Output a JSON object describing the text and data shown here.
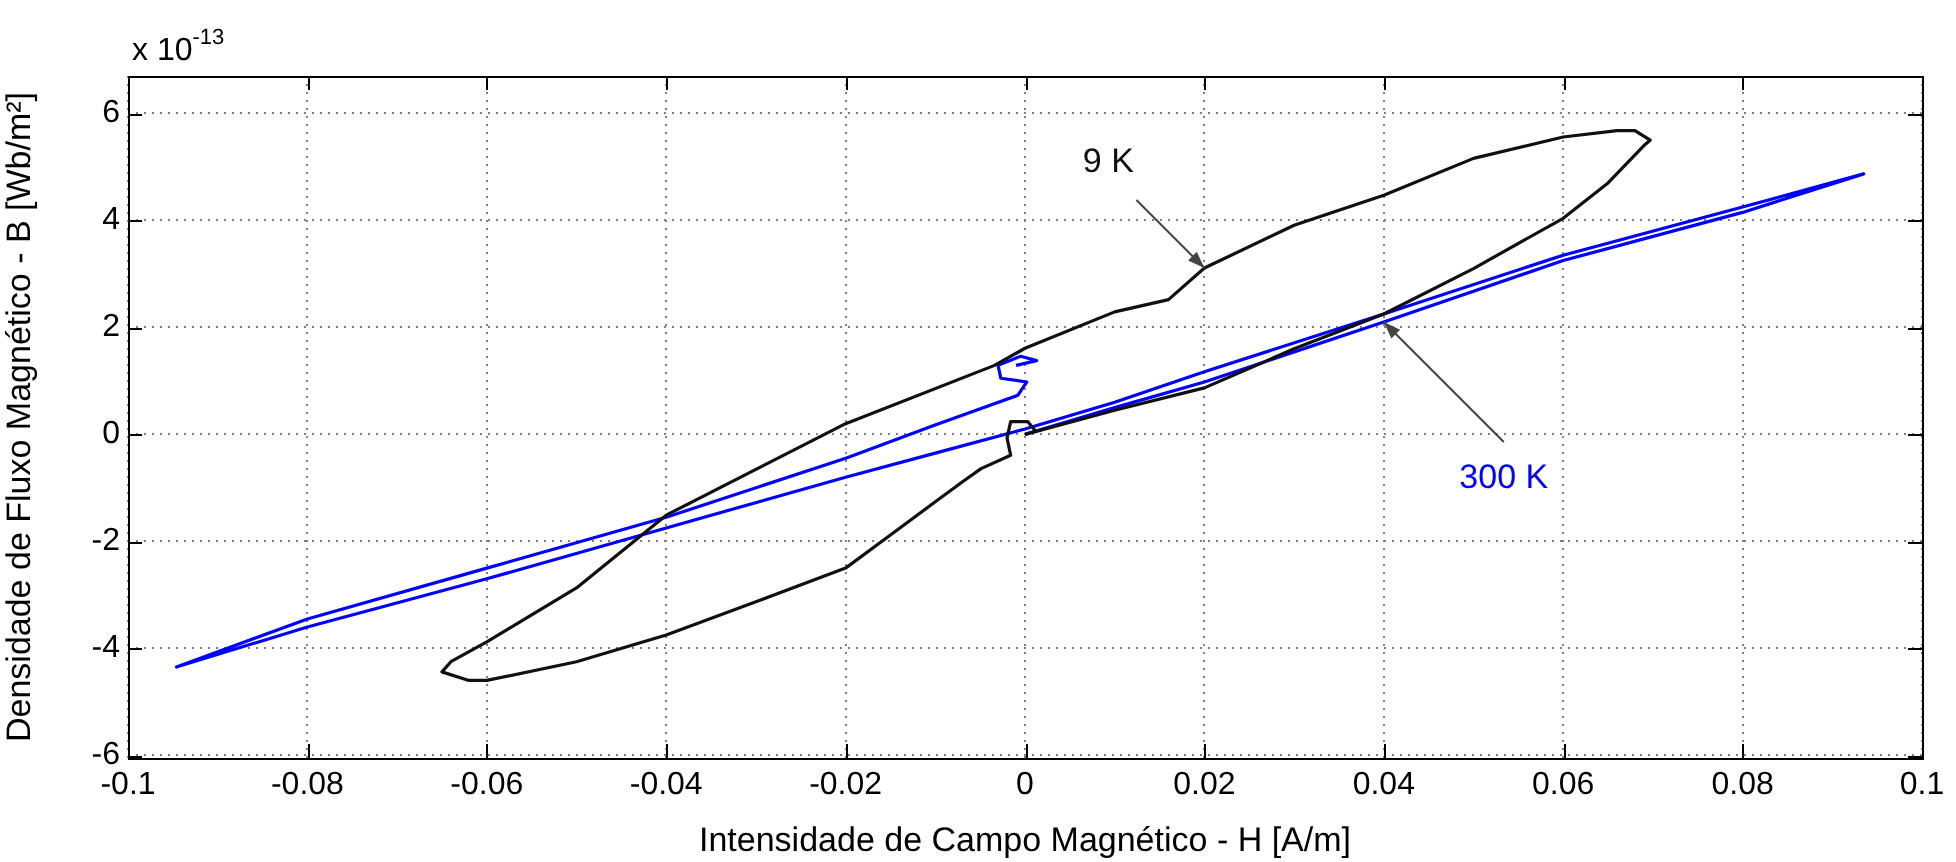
{
  "chart_data": {
    "type": "line",
    "xlabel": "Intensidade de Campo Magnético - H [A/m]",
    "ylabel": "Densidade de Fluxo Magnético - B [Wb/m²]",
    "xlim": [
      -0.1,
      0.1
    ],
    "xticks": [
      -0.1,
      -0.08,
      -0.06,
      -0.04,
      -0.02,
      0,
      0.02,
      0.04,
      0.06,
      0.08,
      0.1
    ],
    "ylim": [
      -6.05,
      6.7
    ],
    "yticks": [
      -6,
      -4,
      -2,
      0,
      2,
      4,
      6
    ],
    "grid": true,
    "legend": false,
    "marker": "none",
    "line_style": "solid",
    "annotations": [
      {
        "text": "9 K",
        "x": 0.02,
        "y": 3.11
      },
      {
        "text": "300 K",
        "x": 0.04,
        "y": 2.1
      },
      "x 10$^{-13}$"
    ],
    "series": [
      {
        "color": "#101010",
        "x": [
          0,
          0.01,
          0.02,
          0.03,
          0.04,
          0.05,
          0.06,
          0.065,
          0.069,
          0.0697,
          0.068,
          0.066,
          0.06,
          0.05,
          0.04,
          0.03,
          0.02,
          0.016,
          0.01,
          0,
          -0.0034,
          -0.02,
          -0.04,
          -0.05,
          -0.06,
          -0.064,
          -0.065,
          -0.062,
          -0.06,
          -0.05,
          -0.04,
          -0.03,
          -0.02,
          -0.015,
          -0.01,
          -0.007,
          -0.0049,
          -0.0016,
          -0.002,
          -0.0016,
          0.0003,
          0.0012
        ],
        "values": [
          0,
          0.45,
          0.87,
          1.6,
          2.25,
          3.1,
          4.04,
          4.7,
          5.4,
          5.5,
          5.68,
          5.68,
          5.56,
          5.16,
          4.47,
          3.91,
          3.11,
          2.52,
          2.29,
          1.61,
          1.29,
          0.2,
          -1.51,
          -2.87,
          -3.88,
          -4.25,
          -4.44,
          -4.6,
          -4.6,
          -4.25,
          -3.75,
          -3.13,
          -2.5,
          -1.88,
          -1.26,
          -0.89,
          -0.64,
          -0.39,
          -0.07,
          0.24,
          0.24,
          0.06
        ]
      },
      {
        "color": "#0000ff",
        "x": [
          -0.001,
          0.0013,
          -0.0005,
          -0.003,
          -0.0027,
          0.0002,
          -0.0008,
          -0.0101,
          -0.0199,
          -0.04,
          -0.06,
          -0.08,
          -0.0946,
          -0.08,
          -0.06,
          -0.04,
          -0.02,
          -0.01,
          0,
          0.01,
          0.02,
          0.04,
          0.06,
          0.08,
          0.0935,
          0.08,
          0.06,
          0.04,
          0.02,
          0.01,
          0
        ],
        "values": [
          1.29,
          1.38,
          1.46,
          1.29,
          1.05,
          0.98,
          0.73,
          0.17,
          -0.44,
          -1.55,
          -2.5,
          -3.45,
          -4.35,
          -3.6,
          -2.7,
          -1.75,
          -0.8,
          -0.35,
          0.1,
          0.6,
          1.17,
          2.25,
          3.35,
          4.25,
          4.87,
          4.15,
          3.25,
          2.1,
          0.98,
          0.5,
          0
        ]
      }
    ]
  }
}
